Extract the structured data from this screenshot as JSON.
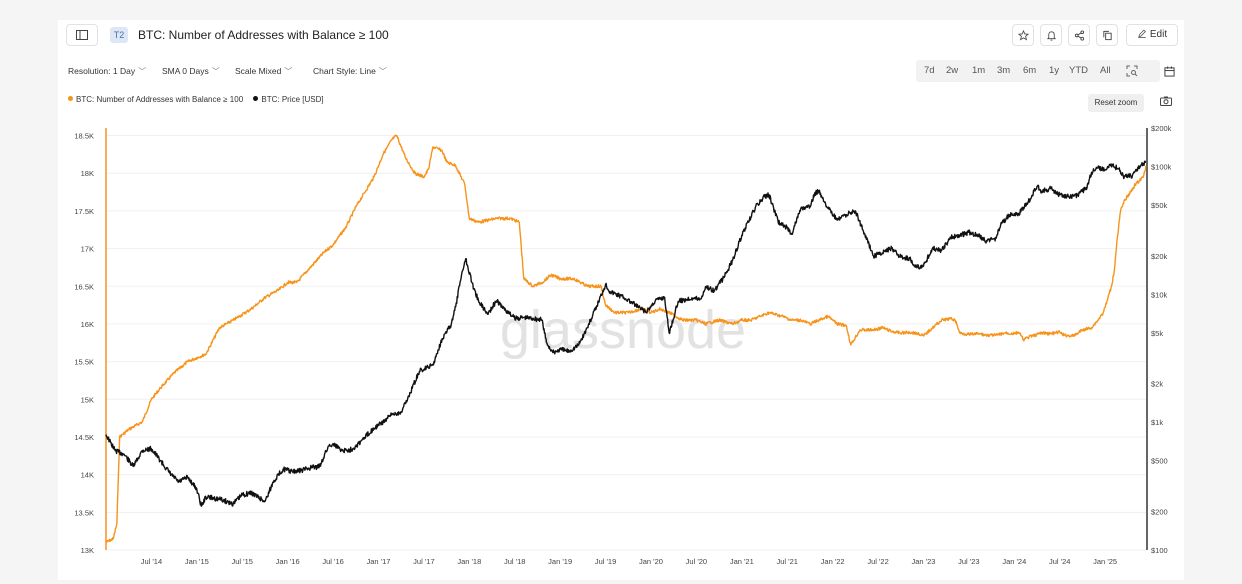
{
  "header": {
    "tier_badge": "T2",
    "title": "BTC: Number of Addresses with Balance ≥ 100",
    "edit_label": "Edit"
  },
  "controls": {
    "resolution": "Resolution: 1 Day",
    "sma": "SMA 0 Days",
    "scale": "Scale Mixed",
    "chart_style": "Chart Style: Line",
    "ranges": [
      "7d",
      "2w",
      "1m",
      "3m",
      "6m",
      "1y",
      "YTD",
      "All"
    ]
  },
  "legend": {
    "series1": "BTC: Number of Addresses with Balance ≥ 100",
    "series2": "BTC: Price [USD]",
    "reset_zoom": "Reset zoom"
  },
  "watermark": "glassnode",
  "colors": {
    "addresses": "#f7931a",
    "price": "#111111",
    "grid": "#f0f0f0"
  },
  "icons": [
    "panel-toggle-icon",
    "star-icon",
    "bell-icon",
    "share-icon",
    "copy-icon",
    "pencil-icon",
    "zoom-select-icon",
    "calendar-icon",
    "camera-icon"
  ],
  "chart_data": {
    "type": "line",
    "x_tick_labels": [
      "Jul '14",
      "Jan '15",
      "Jul '15",
      "Jan '16",
      "Jul '16",
      "Jan '17",
      "Jul '17",
      "Jan '18",
      "Jul '18",
      "Jan '19",
      "Jul '19",
      "Jan '20",
      "Jul '20",
      "Jan '21",
      "Jul '21",
      "Jan '22",
      "Jul '22",
      "Jan '23",
      "Jul '23",
      "Jan '24",
      "Jul '24",
      "Jan '25"
    ],
    "x_range": [
      2014.0,
      2025.45
    ],
    "left_axis": {
      "scale": "linear",
      "range": [
        13000,
        18600
      ],
      "ticks": [
        13000,
        13500,
        14000,
        14500,
        15000,
        15500,
        16000,
        16500,
        17000,
        17500,
        18000,
        18500
      ],
      "tick_labels": [
        "13K",
        "13.5K",
        "14K",
        "14.5K",
        "15K",
        "15.5K",
        "16K",
        "16.5K",
        "17K",
        "17.5K",
        "18K",
        "18.5K"
      ]
    },
    "right_axis": {
      "scale": "log",
      "range": [
        100,
        200000
      ],
      "ticks": [
        100,
        200,
        500,
        1000,
        2000,
        5000,
        10000,
        20000,
        50000,
        100000,
        200000
      ],
      "tick_labels": [
        "$100",
        "$200",
        "$500",
        "$1k",
        "$2k",
        "$5k",
        "$10k",
        "$20k",
        "$50k",
        "$100k",
        "$200k"
      ]
    },
    "series": [
      {
        "name": "BTC: Number of Addresses with Balance ≥ 100",
        "axis": "left",
        "points": [
          [
            2014.0,
            13100
          ],
          [
            2014.08,
            13150
          ],
          [
            2014.12,
            13350
          ],
          [
            2014.15,
            14500
          ],
          [
            2014.25,
            14600
          ],
          [
            2014.4,
            14700
          ],
          [
            2014.5,
            15000
          ],
          [
            2014.6,
            15150
          ],
          [
            2014.75,
            15350
          ],
          [
            2014.9,
            15500
          ],
          [
            2015.0,
            15550
          ],
          [
            2015.1,
            15600
          ],
          [
            2015.25,
            15950
          ],
          [
            2015.4,
            16050
          ],
          [
            2015.6,
            16200
          ],
          [
            2015.75,
            16350
          ],
          [
            2015.9,
            16450
          ],
          [
            2016.0,
            16550
          ],
          [
            2016.1,
            16550
          ],
          [
            2016.25,
            16750
          ],
          [
            2016.4,
            16950
          ],
          [
            2016.5,
            17050
          ],
          [
            2016.65,
            17300
          ],
          [
            2016.75,
            17550
          ],
          [
            2016.85,
            17750
          ],
          [
            2016.95,
            17950
          ],
          [
            2017.05,
            18250
          ],
          [
            2017.15,
            18450
          ],
          [
            2017.2,
            18500
          ],
          [
            2017.3,
            18200
          ],
          [
            2017.4,
            18000
          ],
          [
            2017.5,
            17950
          ],
          [
            2017.55,
            18050
          ],
          [
            2017.6,
            18350
          ],
          [
            2017.7,
            18300
          ],
          [
            2017.75,
            18150
          ],
          [
            2017.85,
            18100
          ],
          [
            2017.95,
            17850
          ],
          [
            2018.0,
            17400
          ],
          [
            2018.1,
            17350
          ],
          [
            2018.3,
            17400
          ],
          [
            2018.45,
            17400
          ],
          [
            2018.55,
            17350
          ],
          [
            2018.6,
            16600
          ],
          [
            2018.7,
            16500
          ],
          [
            2018.8,
            16550
          ],
          [
            2018.9,
            16650
          ],
          [
            2019.0,
            16600
          ],
          [
            2019.15,
            16600
          ],
          [
            2019.3,
            16500
          ],
          [
            2019.45,
            16500
          ],
          [
            2019.5,
            16250
          ],
          [
            2019.6,
            16150
          ],
          [
            2019.75,
            16150
          ],
          [
            2019.9,
            16200
          ],
          [
            2020.0,
            16150
          ],
          [
            2020.1,
            16200
          ],
          [
            2020.2,
            16150
          ],
          [
            2020.35,
            16050
          ],
          [
            2020.5,
            16050
          ],
          [
            2020.6,
            16000
          ],
          [
            2020.75,
            16050
          ],
          [
            2020.9,
            16000
          ],
          [
            2021.0,
            16050
          ],
          [
            2021.1,
            16050
          ],
          [
            2021.2,
            16100
          ],
          [
            2021.3,
            16150
          ],
          [
            2021.45,
            16100
          ],
          [
            2021.55,
            16050
          ],
          [
            2021.65,
            16050
          ],
          [
            2021.75,
            16000
          ],
          [
            2021.85,
            16050
          ],
          [
            2021.95,
            16100
          ],
          [
            2022.05,
            16000
          ],
          [
            2022.15,
            15980
          ],
          [
            2022.2,
            15720
          ],
          [
            2022.3,
            15920
          ],
          [
            2022.45,
            15920
          ],
          [
            2022.55,
            15950
          ],
          [
            2022.65,
            15900
          ],
          [
            2022.75,
            15880
          ],
          [
            2022.85,
            15890
          ],
          [
            2022.95,
            15870
          ],
          [
            2023.0,
            15840
          ],
          [
            2023.1,
            15950
          ],
          [
            2023.2,
            16050
          ],
          [
            2023.3,
            16070
          ],
          [
            2023.35,
            16050
          ],
          [
            2023.4,
            15880
          ],
          [
            2023.5,
            15860
          ],
          [
            2023.6,
            15870
          ],
          [
            2023.7,
            15850
          ],
          [
            2023.8,
            15850
          ],
          [
            2023.9,
            15880
          ],
          [
            2024.0,
            15870
          ],
          [
            2024.05,
            15890
          ],
          [
            2024.1,
            15790
          ],
          [
            2024.15,
            15820
          ],
          [
            2024.2,
            15840
          ],
          [
            2024.3,
            15880
          ],
          [
            2024.4,
            15870
          ],
          [
            2024.5,
            15890
          ],
          [
            2024.55,
            15850
          ],
          [
            2024.65,
            15840
          ],
          [
            2024.75,
            15920
          ],
          [
            2024.85,
            15950
          ],
          [
            2024.92,
            16050
          ],
          [
            2024.98,
            16150
          ],
          [
            2025.02,
            16300
          ],
          [
            2025.07,
            16500
          ],
          [
            2025.1,
            16700
          ],
          [
            2025.13,
            17100
          ],
          [
            2025.17,
            17500
          ],
          [
            2025.22,
            17650
          ],
          [
            2025.28,
            17750
          ],
          [
            2025.33,
            17850
          ],
          [
            2025.38,
            17900
          ],
          [
            2025.42,
            17950
          ],
          [
            2025.45,
            18100
          ]
        ]
      },
      {
        "name": "BTC: Price [USD]",
        "axis": "right",
        "points": [
          [
            2014.0,
            800
          ],
          [
            2014.1,
            600
          ],
          [
            2014.2,
            560
          ],
          [
            2014.3,
            450
          ],
          [
            2014.4,
            600
          ],
          [
            2014.5,
            620
          ],
          [
            2014.6,
            500
          ],
          [
            2014.7,
            400
          ],
          [
            2014.8,
            340
          ],
          [
            2014.9,
            370
          ],
          [
            2015.0,
            300
          ],
          [
            2015.05,
            220
          ],
          [
            2015.1,
            260
          ],
          [
            2015.25,
            250
          ],
          [
            2015.4,
            230
          ],
          [
            2015.5,
            270
          ],
          [
            2015.6,
            280
          ],
          [
            2015.75,
            240
          ],
          [
            2015.85,
            350
          ],
          [
            2015.95,
            430
          ],
          [
            2016.05,
            410
          ],
          [
            2016.15,
            420
          ],
          [
            2016.25,
            440
          ],
          [
            2016.35,
            450
          ],
          [
            2016.45,
            650
          ],
          [
            2016.5,
            680
          ],
          [
            2016.6,
            600
          ],
          [
            2016.7,
            610
          ],
          [
            2016.8,
            700
          ],
          [
            2016.95,
            900
          ],
          [
            2017.05,
            1000
          ],
          [
            2017.15,
            1150
          ],
          [
            2017.25,
            1200
          ],
          [
            2017.35,
            1700
          ],
          [
            2017.45,
            2500
          ],
          [
            2017.55,
            2700
          ],
          [
            2017.6,
            2800
          ],
          [
            2017.7,
            4500
          ],
          [
            2017.8,
            5800
          ],
          [
            2017.85,
            8000
          ],
          [
            2017.92,
            15000
          ],
          [
            2017.96,
            19000
          ],
          [
            2018.05,
            11000
          ],
          [
            2018.1,
            9000
          ],
          [
            2018.2,
            7000
          ],
          [
            2018.3,
            8900
          ],
          [
            2018.4,
            7500
          ],
          [
            2018.5,
            6500
          ],
          [
            2018.6,
            6600
          ],
          [
            2018.7,
            6500
          ],
          [
            2018.8,
            6300
          ],
          [
            2018.85,
            4200
          ],
          [
            2018.92,
            3500
          ],
          [
            2019.0,
            3700
          ],
          [
            2019.1,
            3600
          ],
          [
            2019.2,
            4000
          ],
          [
            2019.3,
            5500
          ],
          [
            2019.4,
            8000
          ],
          [
            2019.5,
            12000
          ],
          [
            2019.55,
            10500
          ],
          [
            2019.7,
            9500
          ],
          [
            2019.8,
            8500
          ],
          [
            2019.95,
            7200
          ],
          [
            2020.05,
            9000
          ],
          [
            2020.15,
            9500
          ],
          [
            2020.2,
            5000
          ],
          [
            2020.3,
            8800
          ],
          [
            2020.45,
            9400
          ],
          [
            2020.55,
            9200
          ],
          [
            2020.6,
            11500
          ],
          [
            2020.7,
            10700
          ],
          [
            2020.8,
            13500
          ],
          [
            2020.9,
            18500
          ],
          [
            2021.0,
            29000
          ],
          [
            2021.1,
            40000
          ],
          [
            2021.15,
            48000
          ],
          [
            2021.25,
            58000
          ],
          [
            2021.3,
            60000
          ],
          [
            2021.4,
            37000
          ],
          [
            2021.5,
            33000
          ],
          [
            2021.55,
            30000
          ],
          [
            2021.65,
            47000
          ],
          [
            2021.75,
            48000
          ],
          [
            2021.8,
            61000
          ],
          [
            2021.85,
            65000
          ],
          [
            2021.95,
            47000
          ],
          [
            2022.05,
            38000
          ],
          [
            2022.15,
            42000
          ],
          [
            2022.25,
            45000
          ],
          [
            2022.35,
            30000
          ],
          [
            2022.45,
            20000
          ],
          [
            2022.55,
            21000
          ],
          [
            2022.65,
            23000
          ],
          [
            2022.75,
            19500
          ],
          [
            2022.85,
            19000
          ],
          [
            2022.9,
            16500
          ],
          [
            2023.0,
            16600
          ],
          [
            2023.1,
            23000
          ],
          [
            2023.2,
            22000
          ],
          [
            2023.3,
            28000
          ],
          [
            2023.4,
            29000
          ],
          [
            2023.5,
            30500
          ],
          [
            2023.6,
            29000
          ],
          [
            2023.7,
            26000
          ],
          [
            2023.8,
            27500
          ],
          [
            2023.85,
            35000
          ],
          [
            2023.95,
            42000
          ],
          [
            2024.05,
            43000
          ],
          [
            2024.15,
            52000
          ],
          [
            2024.25,
            70000
          ],
          [
            2024.3,
            64000
          ],
          [
            2024.4,
            67000
          ],
          [
            2024.5,
            60000
          ],
          [
            2024.6,
            58000
          ],
          [
            2024.7,
            60000
          ],
          [
            2024.8,
            68000
          ],
          [
            2024.85,
            90000
          ],
          [
            2024.92,
            98000
          ],
          [
            2025.0,
            94000
          ],
          [
            2025.05,
            104000
          ],
          [
            2025.15,
            96000
          ],
          [
            2025.2,
            84000
          ],
          [
            2025.3,
            85000
          ],
          [
            2025.35,
            95000
          ],
          [
            2025.4,
            103000
          ],
          [
            2025.45,
            108000
          ]
        ]
      }
    ]
  }
}
